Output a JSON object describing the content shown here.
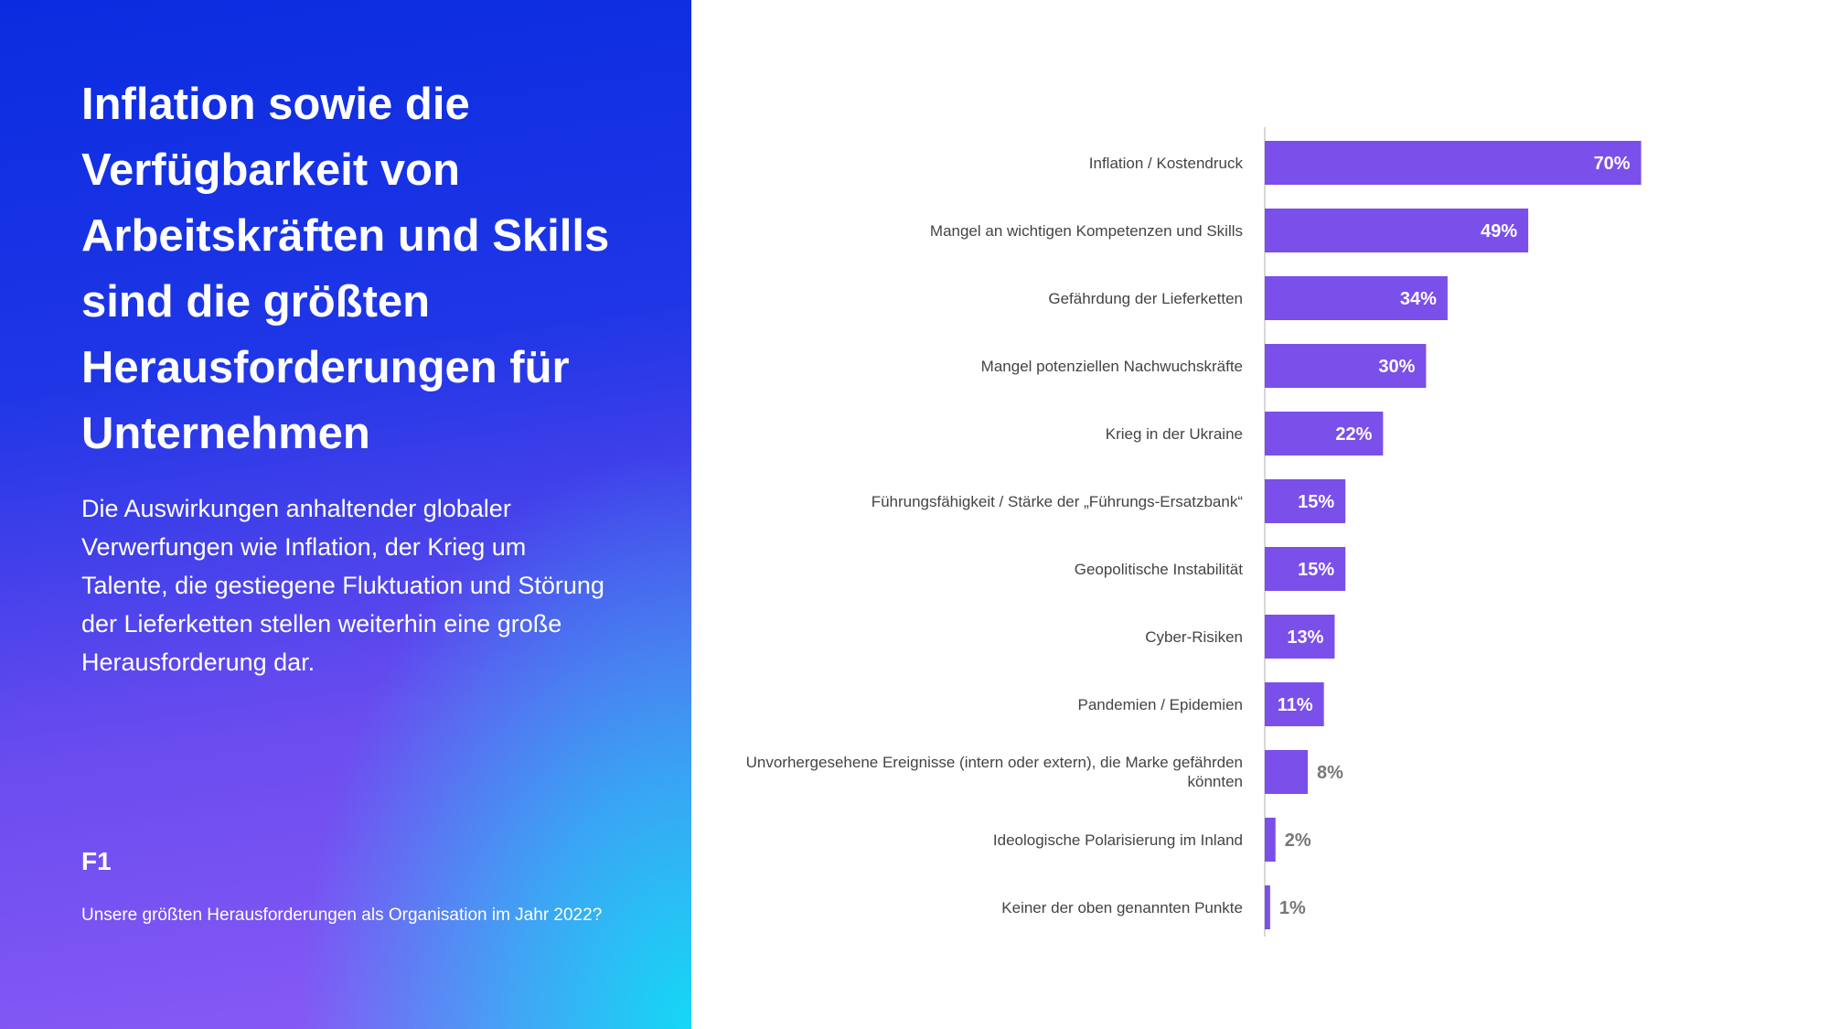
{
  "chart_data": {
    "type": "barh",
    "title": "Inflation sowie die Verfügbarkeit von Arbeitskräften und Skills sind die größten Herausforderungen für Unternehmen",
    "subtitle": "Die Auswirkungen anhaltender globaler Verwerfungen wie Inflation, der Krieg um Talente, die gestiegene Fluktuation und Störung der Lieferketten stellen weiterhin eine große Herausforderung dar.",
    "brand": "F1",
    "question": "Unsere größten Herausforderungen als Organisation im Jahr 2022?",
    "categories": [
      "Inflation / Kostendruck",
      "Mangel an wichtigen Kompetenzen und Skills",
      "Gefährdung der Lieferketten",
      "Mangel potenziellen Nachwuchskräfte",
      "Krieg in der Ukraine",
      "Führungsfähigkeit / Stärke der „Führungs-Ersatzbank“",
      "Geopolitische Instabilität",
      "Cyber-Risiken",
      "Pandemien / Epidemien",
      "Unvorhergesehene Ereignisse (intern oder extern), die Marke gefährden könnten",
      "Ideologische Polarisierung im Inland",
      "Keiner der oben genannten Punkte"
    ],
    "values": [
      70,
      49,
      34,
      30,
      22,
      15,
      15,
      13,
      11,
      8,
      2,
      1
    ],
    "value_labels": [
      "70%",
      "49%",
      "34%",
      "30%",
      "22%",
      "15%",
      "15%",
      "13%",
      "11%",
      "8%",
      "2%",
      "1%"
    ],
    "color": "#7b4fe9"
  }
}
